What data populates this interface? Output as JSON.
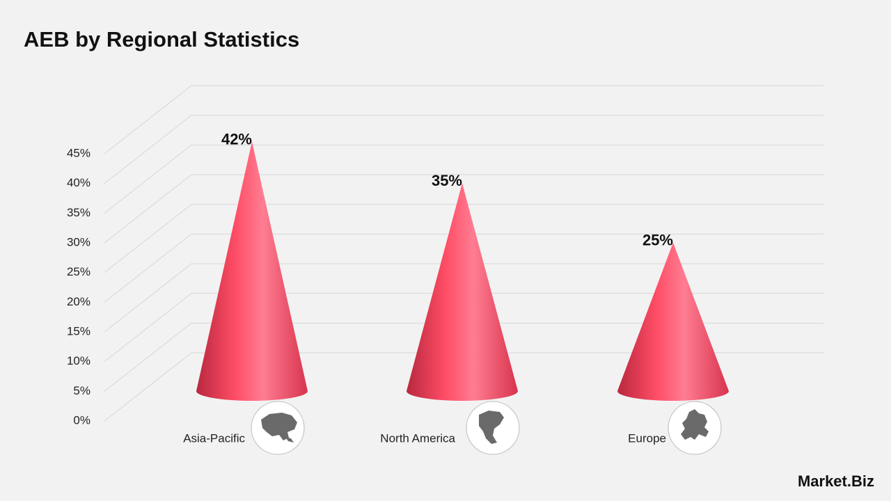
{
  "chart_data": {
    "type": "cone",
    "title": "AEB by Regional Statistics",
    "categories": [
      "Asia-Pacific",
      "North America",
      "Europe"
    ],
    "values": [
      42,
      35,
      25
    ],
    "value_labels": [
      "42%",
      "35%",
      "25%"
    ],
    "color": "#ff4d66",
    "ylim": [
      0,
      45
    ],
    "yticks": [
      {
        "value": 0,
        "label": "0%"
      },
      {
        "value": 5,
        "label": "5%"
      },
      {
        "value": 10,
        "label": "10%"
      },
      {
        "value": 15,
        "label": "15%"
      },
      {
        "value": 20,
        "label": "20%"
      },
      {
        "value": 25,
        "label": "25%"
      },
      {
        "value": 30,
        "label": "30%"
      },
      {
        "value": 35,
        "label": "35%"
      },
      {
        "value": 40,
        "label": "40%"
      },
      {
        "value": 45,
        "label": "45%"
      }
    ],
    "grid": true
  },
  "brand": "Market.Biz"
}
